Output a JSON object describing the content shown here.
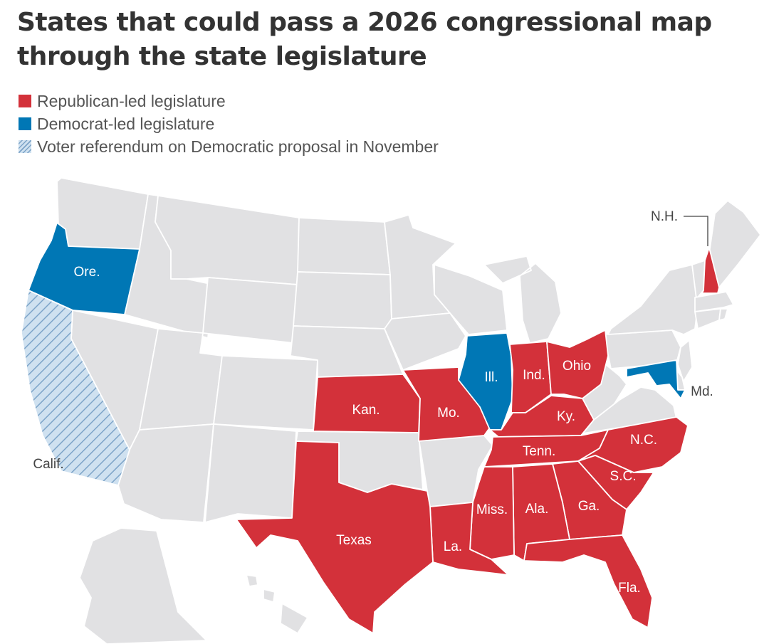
{
  "title": "States that could pass a 2026 congressional map through the state legislature",
  "legend": [
    {
      "label": "Republican-led legislature",
      "key": "rep"
    },
    {
      "label": "Democrat-led legislature",
      "key": "dem"
    },
    {
      "label": "Voter referendum on Democratic proposal in November",
      "key": "ref"
    }
  ],
  "colors": {
    "rep": "#d3313a",
    "dem": "#0077b5",
    "ref_fill": "#cfe1f0",
    "ref_hatch": "#7da4c8",
    "other": "#e1e1e3",
    "border": "#ffffff"
  },
  "states": {
    "oregon": {
      "label": "Ore.",
      "category": "dem"
    },
    "california": {
      "label": "Calif.",
      "category": "ref"
    },
    "kansas": {
      "label": "Kan.",
      "category": "rep"
    },
    "missouri": {
      "label": "Mo.",
      "category": "rep"
    },
    "illinois": {
      "label": "Ill.",
      "category": "dem"
    },
    "indiana": {
      "label": "Ind.",
      "category": "rep"
    },
    "ohio": {
      "label": "Ohio",
      "category": "rep"
    },
    "kentucky": {
      "label": "Ky.",
      "category": "rep"
    },
    "tennessee": {
      "label": "Tenn.",
      "category": "rep"
    },
    "north_carolina": {
      "label": "N.C.",
      "category": "rep"
    },
    "south_carolina": {
      "label": "S.C.",
      "category": "rep"
    },
    "georgia": {
      "label": "Ga.",
      "category": "rep"
    },
    "alabama": {
      "label": "Ala.",
      "category": "rep"
    },
    "mississippi": {
      "label": "Miss.",
      "category": "rep"
    },
    "louisiana": {
      "label": "La.",
      "category": "rep"
    },
    "texas": {
      "label": "Texas",
      "category": "rep"
    },
    "florida": {
      "label": "Fla.",
      "category": "rep"
    },
    "new_hampshire": {
      "label": "N.H.",
      "category": "rep"
    },
    "maryland": {
      "label": "Md.",
      "category": "dem"
    }
  }
}
